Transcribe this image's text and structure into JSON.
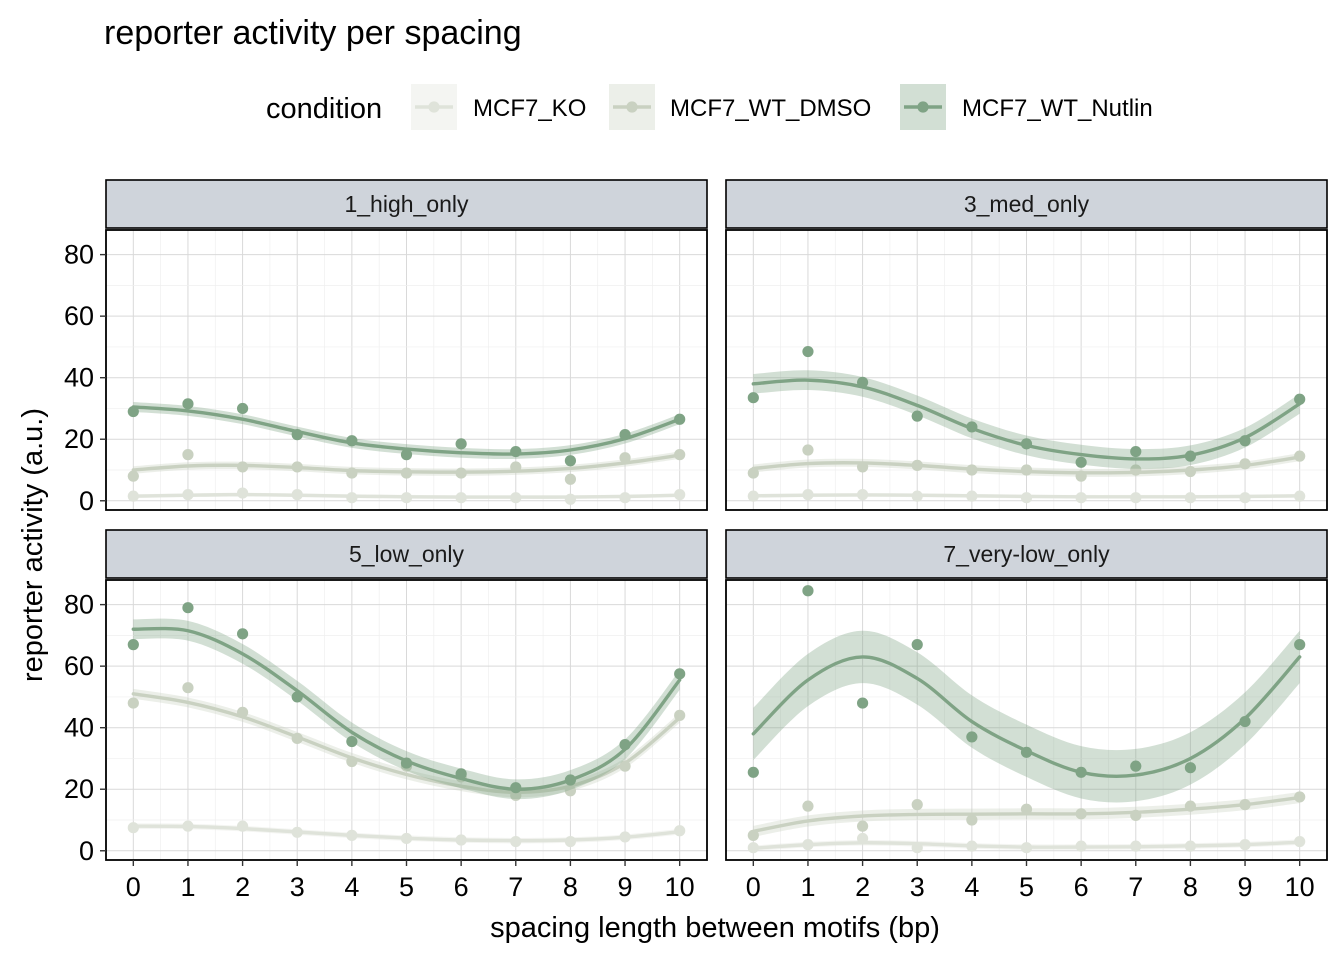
{
  "chart_data": {
    "type": "scatter",
    "title": "reporter activity per spacing",
    "xlabel": "spacing length between motifs (bp)",
    "ylabel": "reporter activity (a.u.)",
    "xlim": [
      -0.5,
      10.5
    ],
    "ylim": [
      -3,
      88
    ],
    "x_ticks": [
      0,
      1,
      2,
      3,
      4,
      5,
      6,
      7,
      8,
      9,
      10
    ],
    "y_ticks": [
      0,
      20,
      40,
      60,
      80
    ],
    "grid": true,
    "legend": {
      "title": "condition",
      "placement": "top",
      "entries": [
        "MCF7_KO",
        "MCF7_WT_DMSO",
        "MCF7_WT_Nutlin"
      ]
    },
    "colors": {
      "MCF7_KO": "#dfe3da",
      "MCF7_WT_DMSO": "#c9d1c1",
      "MCF7_WT_Nutlin": "#7fa385",
      "strip_fill": "#cfd4db"
    },
    "x": [
      0,
      1,
      2,
      3,
      4,
      5,
      6,
      7,
      8,
      9,
      10
    ],
    "panels": [
      {
        "name": "1_high_only",
        "series": [
          {
            "name": "MCF7_KO",
            "points": [
              1.5,
              2,
              2.5,
              2,
              1,
              1,
              1,
              1,
              0.5,
              1,
              2
            ],
            "smooth": [
              1.5,
              1.8,
              2.0,
              1.8,
              1.5,
              1.3,
              1.2,
              1.2,
              1.2,
              1.4,
              1.8
            ],
            "band": 0.6
          },
          {
            "name": "MCF7_WT_DMSO",
            "points": [
              8,
              15,
              11,
              11,
              9,
              9,
              9,
              11,
              7,
              14,
              15
            ],
            "smooth": [
              10,
              11.3,
              11.5,
              10.8,
              9.8,
              9.4,
              9.3,
              9.6,
              10.5,
              12.3,
              14.8
            ],
            "band": 1.2
          },
          {
            "name": "MCF7_WT_Nutlin",
            "points": [
              29,
              31.5,
              30,
              21.5,
              19.5,
              15,
              18.5,
              16,
              13,
              21.5,
              26.5
            ],
            "smooth": [
              30.5,
              29.2,
              26.5,
              22.5,
              18.8,
              16.8,
              15.6,
              15.2,
              16.5,
              20.2,
              26.5
            ],
            "band": 1.6
          }
        ]
      },
      {
        "name": "3_med_only",
        "series": [
          {
            "name": "MCF7_KO",
            "points": [
              1.5,
              2,
              2,
              1.5,
              1.5,
              1,
              1,
              1,
              1,
              1,
              1.5
            ],
            "smooth": [
              1.6,
              1.8,
              1.9,
              1.8,
              1.6,
              1.4,
              1.3,
              1.3,
              1.3,
              1.4,
              1.6
            ],
            "band": 0.6
          },
          {
            "name": "MCF7_WT_DMSO",
            "points": [
              9,
              16.5,
              11,
              11.5,
              10,
              10,
              8,
              10,
              9.5,
              12,
              14.5
            ],
            "smooth": [
              10.5,
              12.1,
              12.3,
              11.5,
              10.3,
              9.5,
              9.1,
              9.2,
              10,
              11.5,
              14.2
            ],
            "band": 1.3
          },
          {
            "name": "MCF7_WT_Nutlin",
            "points": [
              33.5,
              48.5,
              38.5,
              27.5,
              24,
              18.5,
              12.5,
              16,
              14.5,
              19.5,
              33
            ],
            "smooth": [
              38,
              39.2,
              37,
              31,
              23.5,
              18,
              15,
              13.6,
              14.8,
              20.5,
              31.5
            ],
            "band": 3.2
          }
        ]
      },
      {
        "name": "5_low_only",
        "series": [
          {
            "name": "MCF7_KO",
            "points": [
              7.5,
              8,
              8,
              6,
              5,
              4,
              3.5,
              3,
              3,
              4.5,
              6.5
            ],
            "smooth": [
              8,
              7.9,
              7.2,
              6.1,
              5,
              4.1,
              3.5,
              3.3,
              3.5,
              4.4,
              6.2
            ],
            "band": 0.9
          },
          {
            "name": "MCF7_WT_DMSO",
            "points": [
              48,
              53,
              45,
              36.5,
              29,
              27.5,
              24,
              18,
              19.5,
              27.5,
              44
            ],
            "smooth": [
              51,
              48.2,
              43.5,
              37,
              30.2,
              24.8,
              21,
              19,
              21,
              28.5,
              43.2
            ],
            "band": 1.6
          },
          {
            "name": "MCF7_WT_Nutlin",
            "points": [
              67,
              79,
              70.5,
              50,
              35.5,
              28.5,
              25,
              20.5,
              23,
              34.5,
              57.5
            ],
            "smooth": [
              72,
              71.5,
              64,
              52,
              38.5,
              29.2,
              23.5,
              20,
              23,
              33,
              55.5
            ],
            "band": 3.2
          }
        ]
      },
      {
        "name": "7_very-low_only",
        "series": [
          {
            "name": "MCF7_KO",
            "points": [
              1,
              2,
              4,
              1,
              1.5,
              1,
              1.5,
              1.5,
              1.5,
              2,
              3
            ],
            "smooth": [
              0.8,
              2.0,
              2.6,
              2.3,
              1.6,
              1.2,
              1.2,
              1.3,
              1.6,
              2.0,
              2.8
            ],
            "band": 0.9
          },
          {
            "name": "MCF7_WT_DMSO",
            "points": [
              5,
              14.5,
              8,
              15,
              10,
              13.5,
              12,
              11.5,
              14.5,
              15,
              17.5
            ],
            "smooth": [
              6.3,
              9.7,
              11.3,
              11.8,
              11.9,
              12,
              12,
              12.5,
              13.5,
              15,
              17.3
            ],
            "band": 1.8
          },
          {
            "name": "MCF7_WT_Nutlin",
            "points": [
              25.5,
              84.5,
              48,
              67,
              37,
              32,
              25.5,
              27.5,
              27,
              42,
              67
            ],
            "smooth": [
              38,
              55.5,
              63,
              56,
              42,
              32.5,
              25.5,
              24.6,
              30,
              43,
              63
            ],
            "band": 8.5
          }
        ]
      }
    ]
  }
}
